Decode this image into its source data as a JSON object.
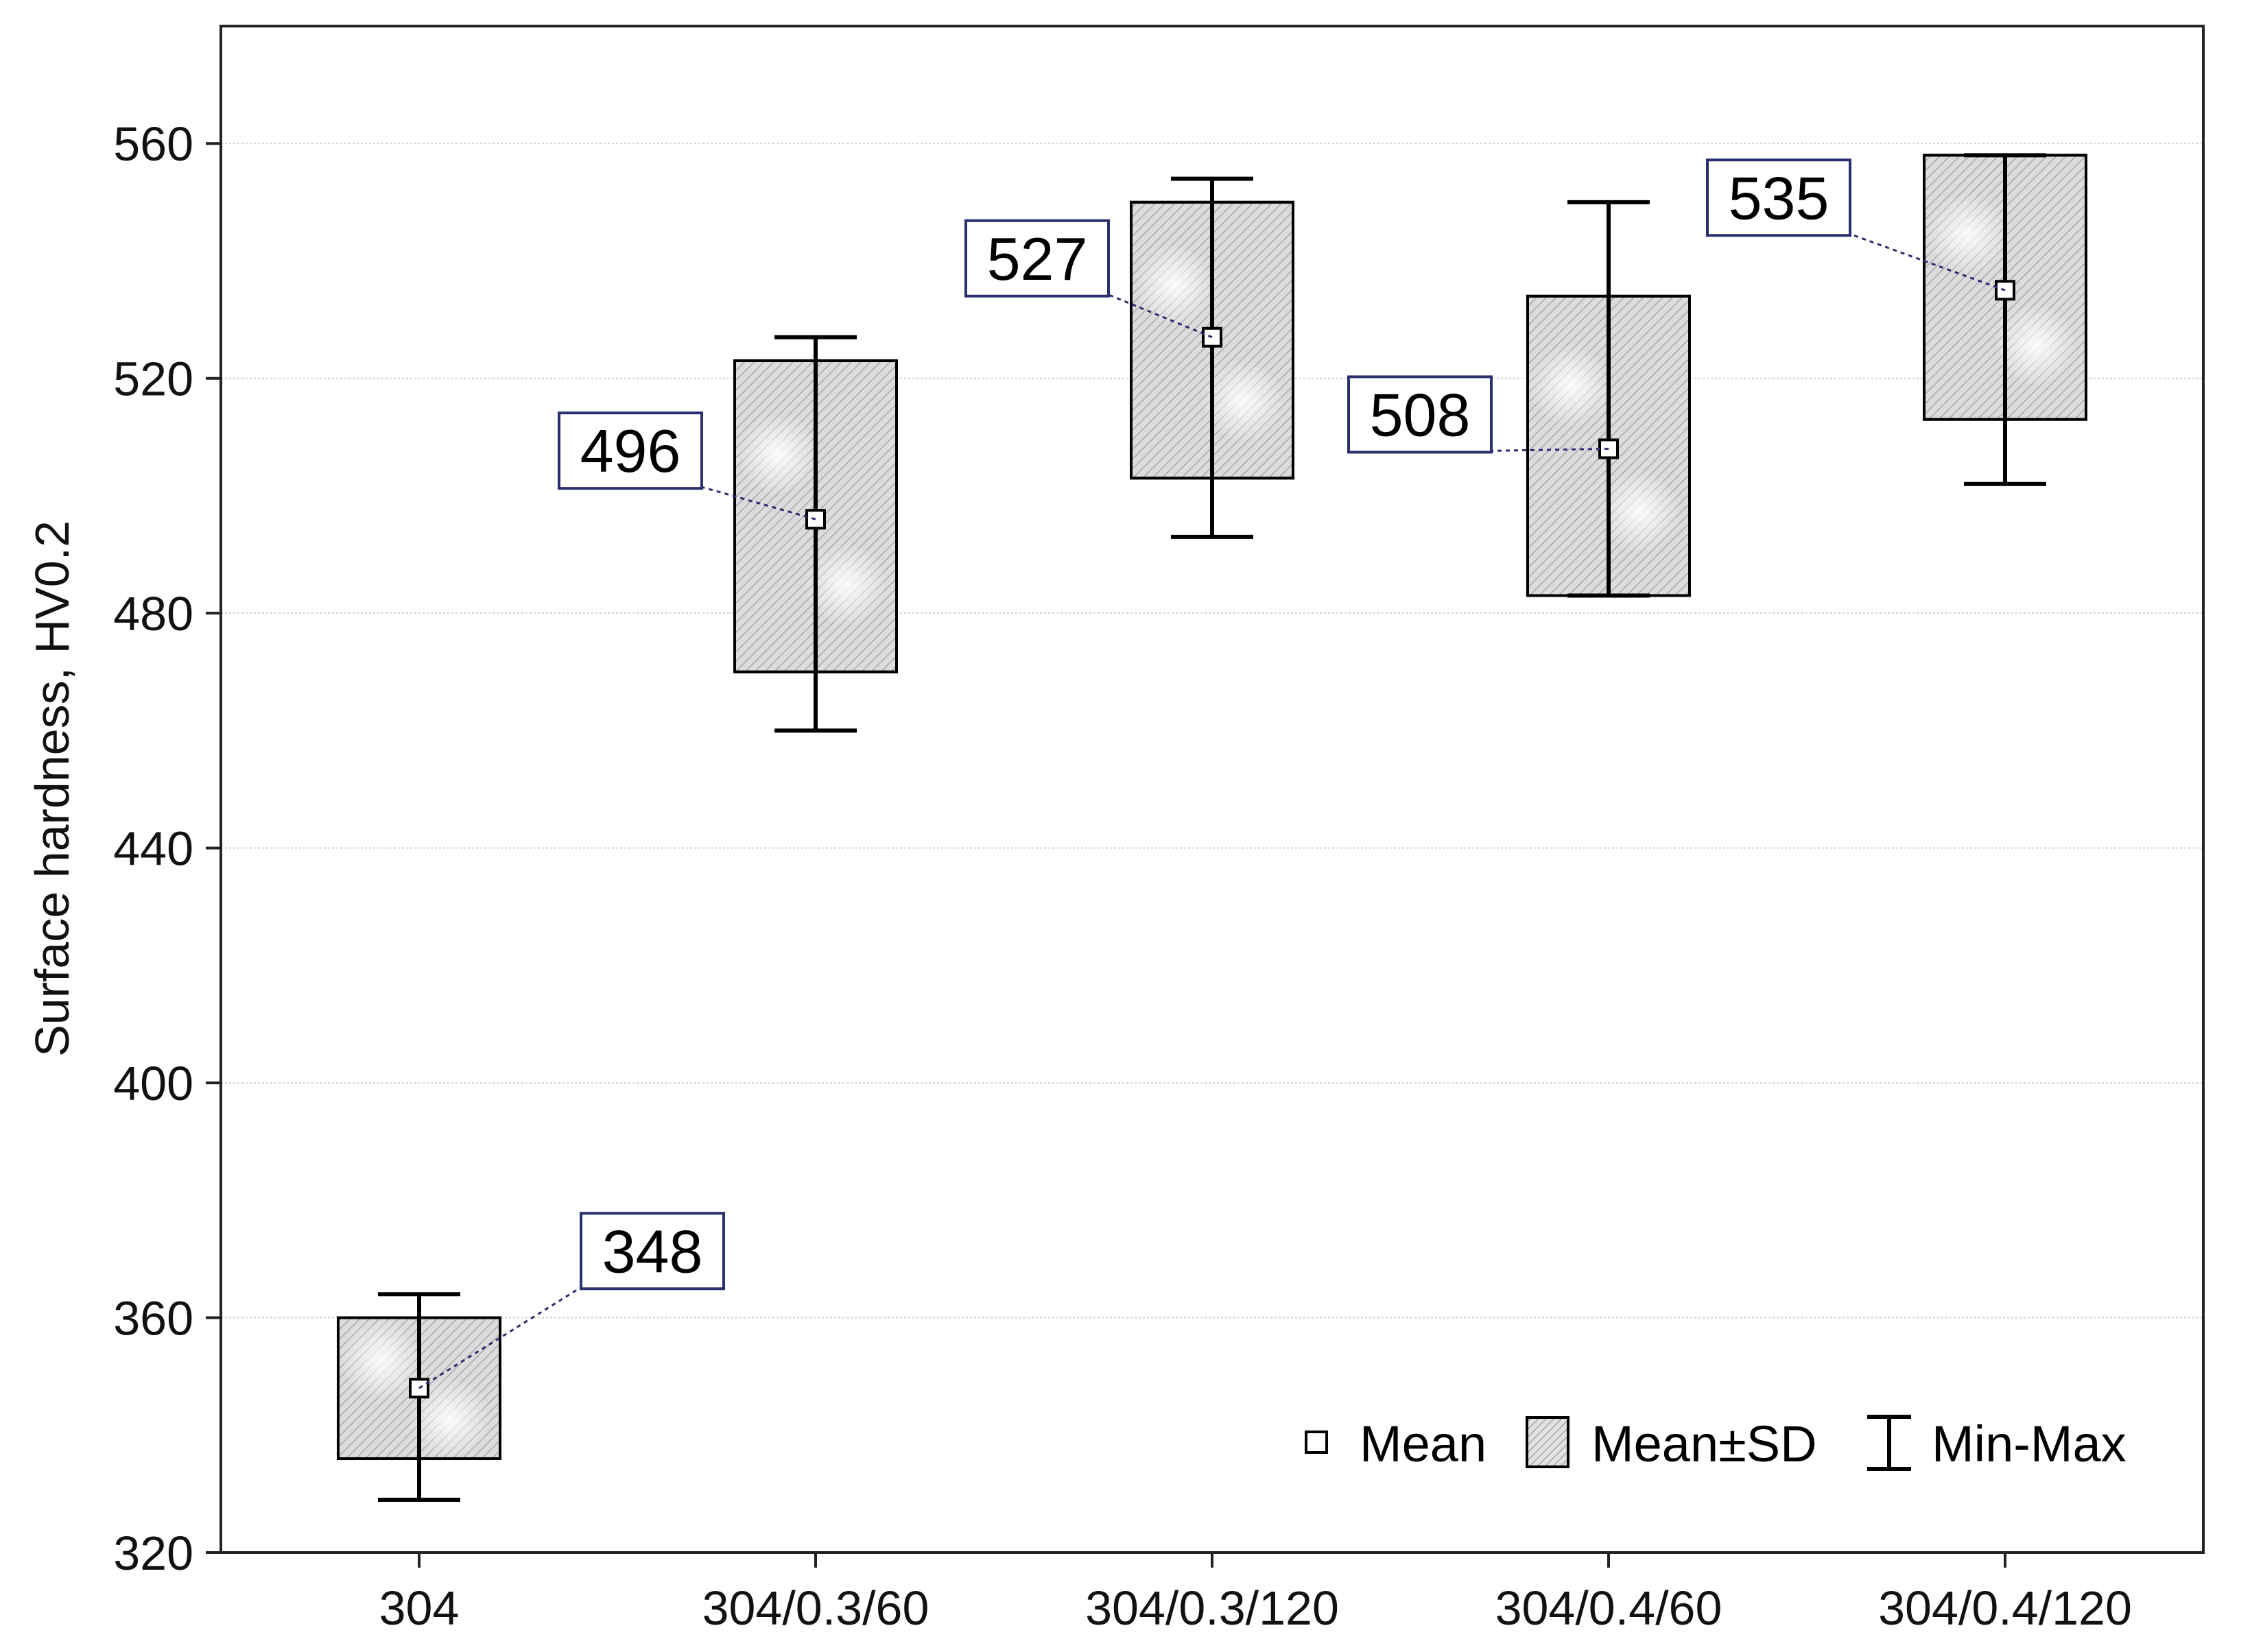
{
  "chart_data": {
    "type": "box",
    "title": "",
    "xlabel": "",
    "ylabel": "Surface hardness, HV0.2",
    "ylim": [
      320,
      580
    ],
    "yticks": [
      320,
      360,
      400,
      440,
      480,
      520,
      560
    ],
    "grid": true,
    "categories": [
      "304",
      "304/0.3/60",
      "304/0.3/120",
      "304/0.4/60",
      "304/0.4/120"
    ],
    "mean": [
      348,
      496,
      527,
      508,
      535
    ],
    "sd_low": [
      336,
      470,
      503,
      483,
      513
    ],
    "sd_high": [
      360,
      523,
      550,
      534,
      558
    ],
    "min": [
      329,
      460,
      493,
      483,
      502
    ],
    "max": [
      364,
      527,
      554,
      550,
      558
    ],
    "annotations": [
      "348",
      "496",
      "527",
      "508",
      "535"
    ],
    "legend": {
      "position": "bottom-right",
      "entries": [
        "Mean",
        "Mean±SD",
        "Min-Max"
      ]
    }
  }
}
